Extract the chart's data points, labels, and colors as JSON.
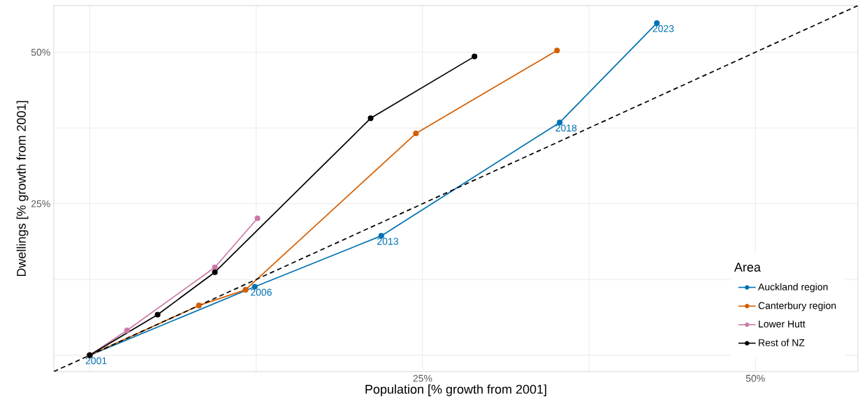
{
  "chart_data": {
    "type": "line",
    "xlabel": "Population [% growth from 2001]",
    "ylabel": "Dwellings [% growth from 2001]",
    "legend_title": "Area",
    "series": [
      {
        "name": "Auckland region",
        "color": "#0072b2",
        "x": [
          0,
          12.4,
          21.9,
          35.3,
          42.6
        ],
        "values": [
          0,
          11.3,
          19.7,
          38.4,
          54.8
        ]
      },
      {
        "name": "Canterbury region",
        "color": "#d55e00",
        "x": [
          0,
          8.2,
          11.7,
          24.5,
          35.1
        ],
        "values": [
          0,
          8.2,
          10.8,
          36.6,
          50.3
        ]
      },
      {
        "name": "Lower Hutt",
        "color": "#cc79a7",
        "x": [
          0,
          2.8,
          9.4,
          12.6
        ],
        "values": [
          0,
          4.1,
          14.5,
          22.6
        ]
      },
      {
        "name": "Rest of NZ",
        "color": "#000000",
        "x": [
          0,
          5.1,
          9.4,
          21.1,
          28.9
        ],
        "values": [
          0,
          6.7,
          13.7,
          39.1,
          49.3
        ]
      },
      {
        "type": "line",
        "color": "#000000",
        "line_style": "dashed",
        "marker": "none",
        "x": [
          -2.7,
          57.7
        ],
        "values": [
          -2.7,
          57.7
        ]
      }
    ],
    "annotations": [
      {
        "text": "2001",
        "x": 0,
        "y": 0
      },
      {
        "text": "2006",
        "x": 12.4,
        "y": 11.3
      },
      {
        "text": "2013",
        "x": 21.9,
        "y": 19.7
      },
      {
        "text": "2018",
        "x": 35.3,
        "y": 38.4
      },
      {
        "text": "2023",
        "x": 42.6,
        "y": 54.8
      }
    ],
    "xlim": [
      -2.7,
      57.7
    ],
    "ylim": [
      -2.7,
      57.7
    ],
    "xticks": [
      {
        "value": 0,
        "label": null
      },
      {
        "value": 12.5,
        "label": null
      },
      {
        "value": 25,
        "label": "25%"
      },
      {
        "value": 37.5,
        "label": null
      },
      {
        "value": 50,
        "label": "50%"
      }
    ],
    "yticks": [
      {
        "value": 0,
        "label": null
      },
      {
        "value": 12.5,
        "label": null
      },
      {
        "value": 25,
        "label": "25%"
      },
      {
        "value": 37.5,
        "label": null
      },
      {
        "value": 50,
        "label": "50%"
      }
    ],
    "grid": true,
    "legend": "bottom right",
    "marker": "circle",
    "line_style": "solid"
  }
}
